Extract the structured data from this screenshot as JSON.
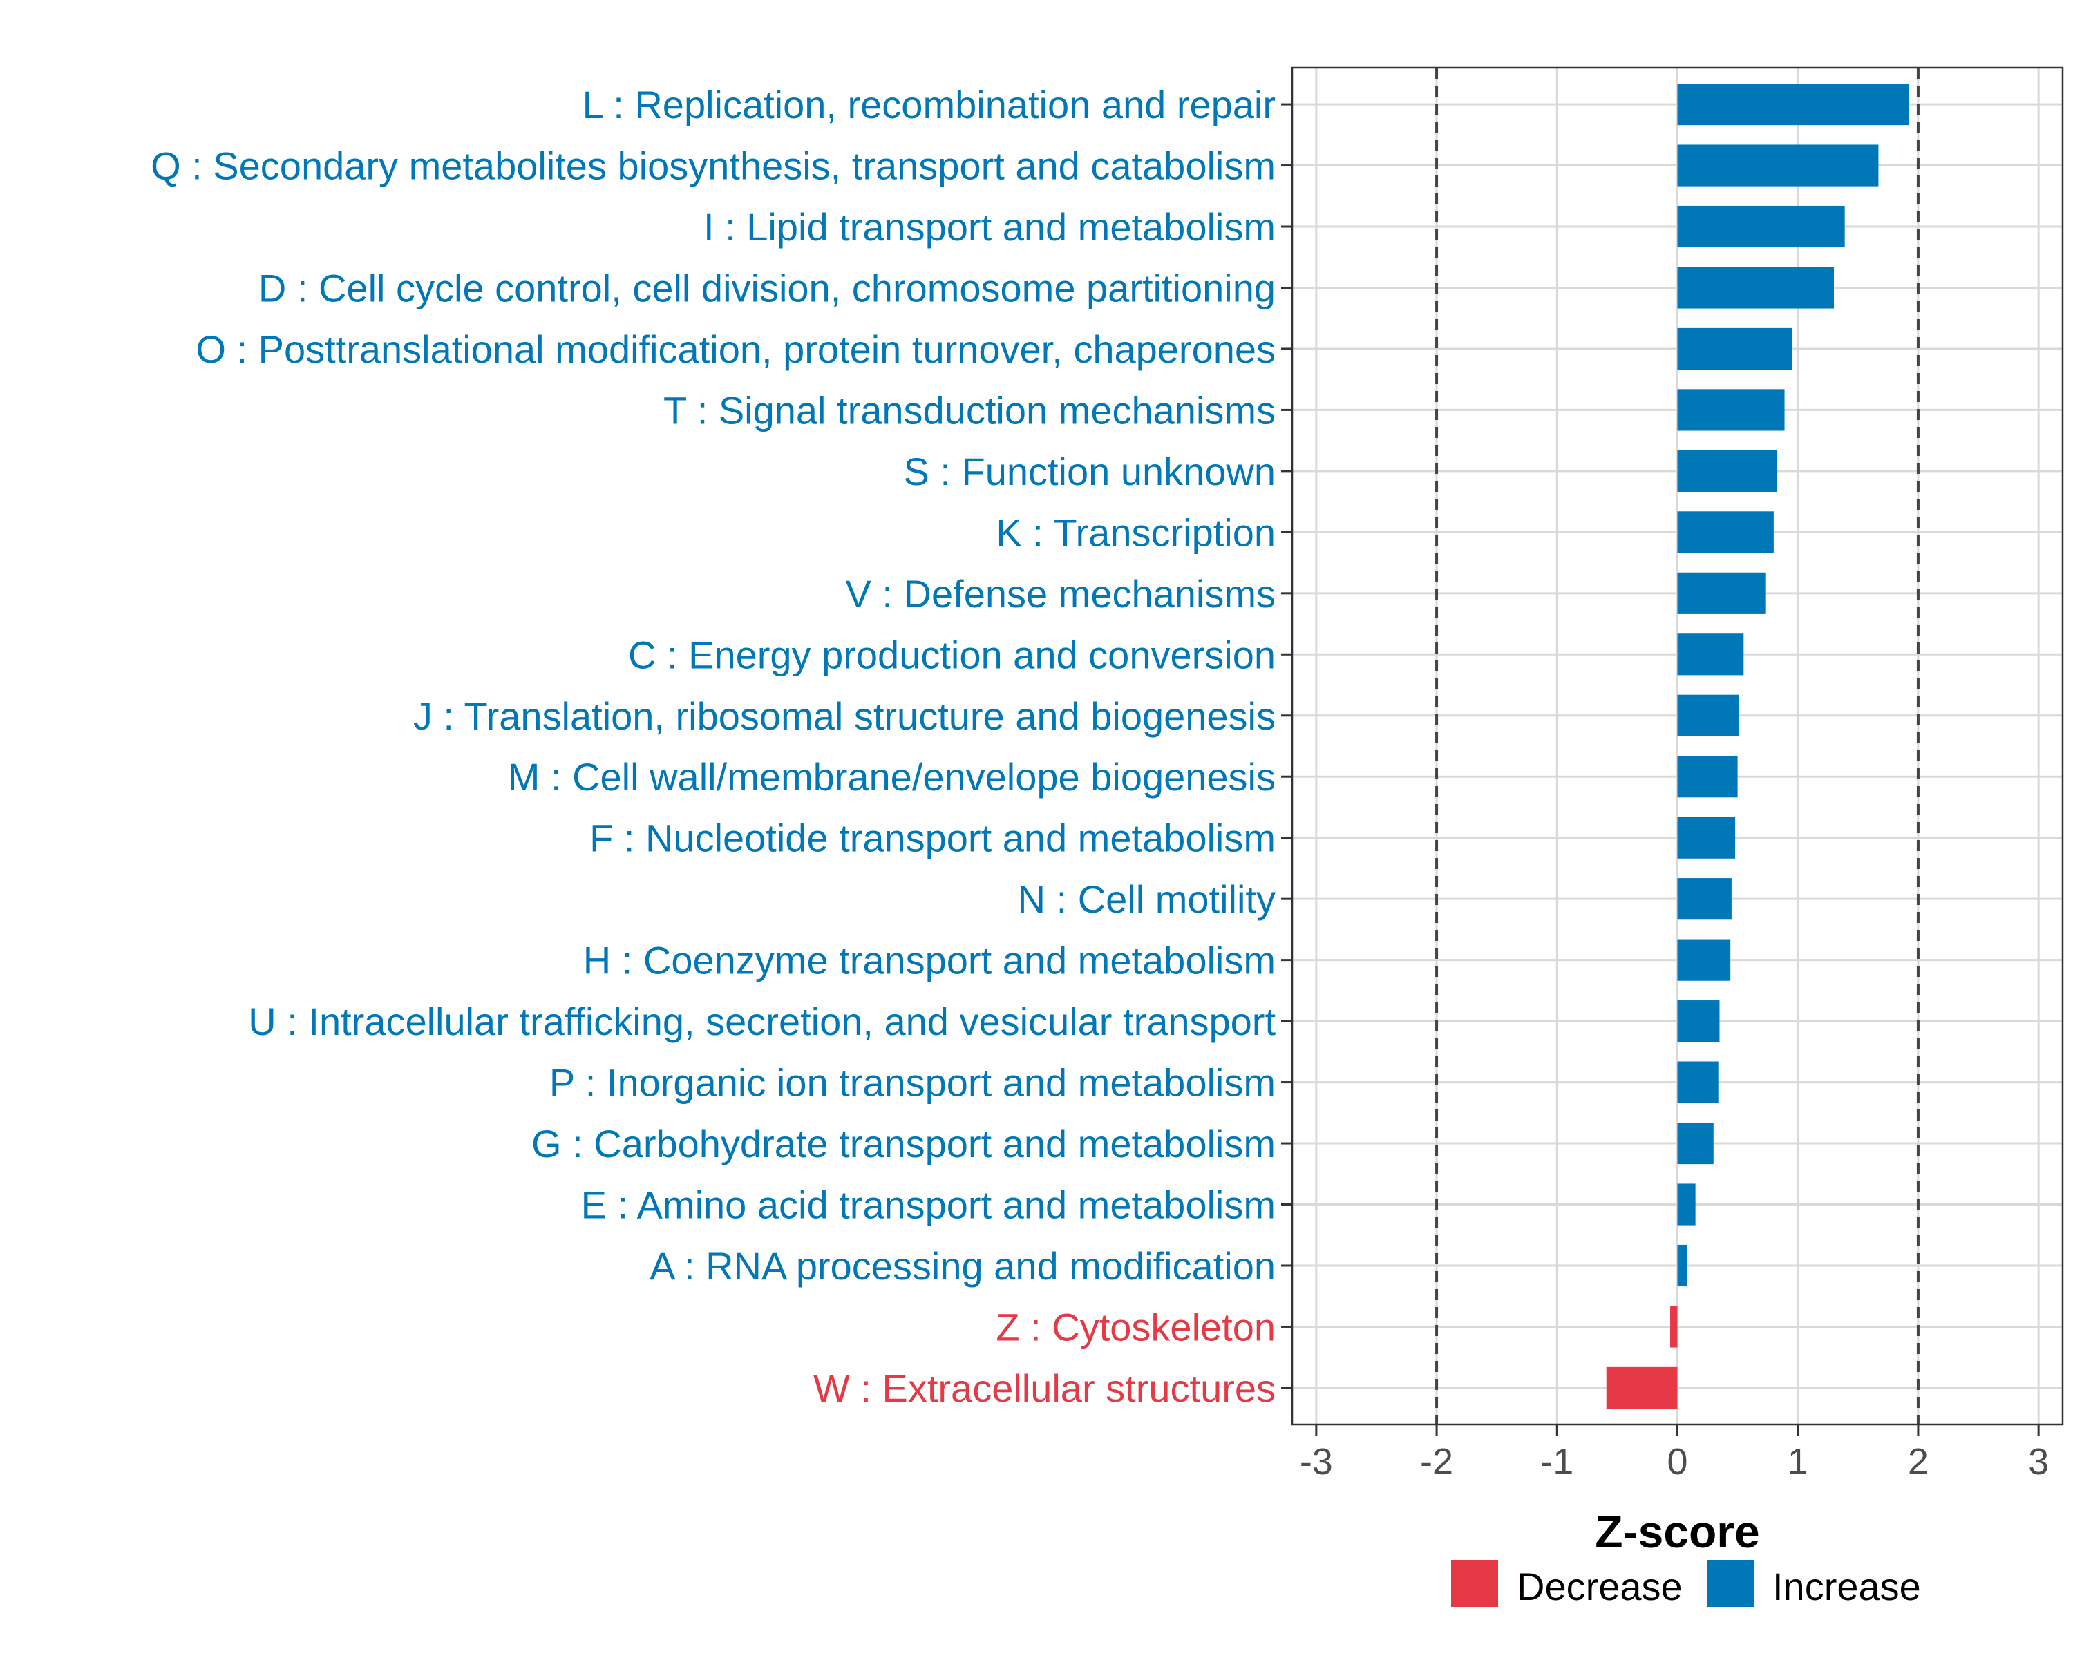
{
  "chart_data": {
    "type": "bar",
    "orientation": "horizontal",
    "title": "",
    "xlabel": "Z-score",
    "ylabel": "",
    "xlim": [
      -3.2,
      3.2
    ],
    "xticks": [
      -3,
      -2,
      -1,
      0,
      1,
      2,
      3
    ],
    "xtick_labels": [
      "-3",
      "-2",
      "-1",
      "0",
      "1",
      "2",
      "3"
    ],
    "reference_lines": [
      -2,
      2
    ],
    "grid": true,
    "legend_position": "bottom",
    "colors": {
      "Decrease": "#E63946",
      "Increase": "#0077B6"
    },
    "categories": [
      "L : Replication, recombination and repair",
      "Q : Secondary metabolites biosynthesis, transport and catabolism",
      "I : Lipid transport and metabolism",
      "D : Cell cycle control, cell division, chromosome partitioning",
      "O : Posttranslational modification, protein turnover, chaperones",
      "T : Signal transduction mechanisms",
      "S : Function unknown",
      "K : Transcription",
      "V : Defense mechanisms",
      "C : Energy production and conversion",
      "J : Translation, ribosomal structure and biogenesis",
      "M : Cell wall/membrane/envelope biogenesis",
      "F : Nucleotide transport and metabolism",
      "N : Cell motility",
      "H : Coenzyme transport and metabolism",
      "U : Intracellular trafficking, secretion, and vesicular transport",
      "P : Inorganic ion transport and metabolism",
      "G : Carbohydrate transport and metabolism",
      "E : Amino acid transport and metabolism",
      "A : RNA processing and modification",
      "Z : Cytoskeleton",
      "W : Extracellular structures"
    ],
    "values": [
      1.92,
      1.67,
      1.39,
      1.3,
      0.95,
      0.89,
      0.83,
      0.8,
      0.73,
      0.55,
      0.51,
      0.5,
      0.48,
      0.45,
      0.44,
      0.35,
      0.34,
      0.3,
      0.15,
      0.08,
      -0.06,
      -0.59
    ],
    "groups": [
      "Increase",
      "Increase",
      "Increase",
      "Increase",
      "Increase",
      "Increase",
      "Increase",
      "Increase",
      "Increase",
      "Increase",
      "Increase",
      "Increase",
      "Increase",
      "Increase",
      "Increase",
      "Increase",
      "Increase",
      "Increase",
      "Increase",
      "Increase",
      "Decrease",
      "Decrease"
    ],
    "legend": [
      "Decrease",
      "Increase"
    ]
  }
}
